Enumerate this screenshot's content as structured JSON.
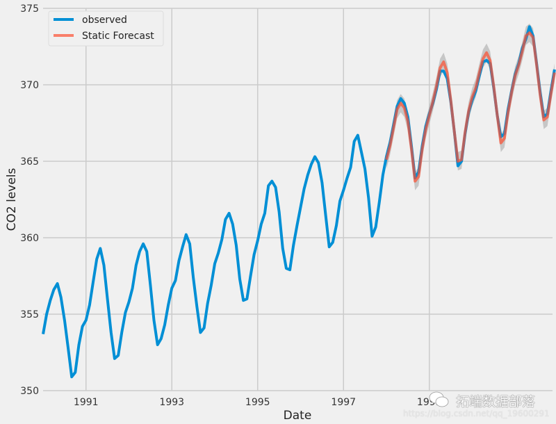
{
  "chart_data": {
    "type": "line",
    "title": "",
    "xlabel": "Date",
    "ylabel": "CO2 levels",
    "x_start": "1990-01",
    "x_end": "2001-12",
    "x_frequency": "monthly",
    "xlim": [
      "1990-01",
      "2001-12"
    ],
    "ylim": [
      350,
      375
    ],
    "x_ticks": [
      "1991",
      "1993",
      "1995",
      "1997",
      "1999"
    ],
    "y_ticks": [
      350,
      355,
      360,
      365,
      370,
      375
    ],
    "grid": true,
    "legend_position": "top-left",
    "series": [
      {
        "name": "observed",
        "color": "#008fd5",
        "start": "1990-01",
        "values": [
          353.7,
          355.0,
          355.9,
          356.6,
          357.0,
          356.1,
          354.6,
          352.8,
          350.9,
          351.2,
          353.0,
          354.2,
          354.6,
          355.6,
          357.1,
          358.6,
          359.3,
          358.2,
          356.0,
          353.8,
          352.1,
          352.3,
          353.8,
          355.1,
          355.8,
          356.7,
          358.2,
          359.1,
          359.6,
          359.1,
          356.9,
          354.6,
          353.0,
          353.4,
          354.3,
          355.6,
          356.7,
          357.2,
          358.5,
          359.4,
          360.2,
          359.6,
          357.4,
          355.5,
          353.8,
          354.1,
          355.7,
          356.9,
          358.3,
          359.0,
          359.9,
          361.2,
          361.6,
          360.9,
          359.5,
          357.3,
          355.9,
          356.0,
          357.5,
          358.9,
          359.8,
          360.9,
          361.6,
          363.4,
          363.7,
          363.3,
          361.7,
          359.3,
          358.0,
          357.9,
          359.5,
          360.8,
          362.0,
          363.2,
          364.1,
          364.8,
          365.3,
          364.9,
          363.6,
          361.5,
          359.4,
          359.7,
          360.8,
          362.4,
          363.1,
          363.9,
          364.6,
          366.3,
          366.7,
          365.6,
          364.5,
          362.6,
          360.1,
          360.7,
          362.3,
          364.1,
          365.3,
          366.2,
          367.4,
          368.6,
          369.1,
          368.8,
          367.9,
          366.0,
          363.9,
          364.3,
          366.0,
          367.3,
          368.1,
          368.8,
          369.7,
          370.9,
          370.9,
          370.4,
          368.9,
          366.9,
          364.7,
          365.0,
          366.8,
          368.2,
          369.0,
          369.6,
          370.6,
          371.5,
          371.6,
          371.4,
          369.8,
          368.0,
          366.6,
          366.8,
          368.4,
          369.6,
          370.7,
          371.4,
          372.4,
          373.0,
          373.8,
          373.2,
          371.4,
          369.5,
          367.9,
          368.1,
          369.6,
          371.0
        ]
      },
      {
        "name": "Static Forecast",
        "color": "#fc4f30",
        "start": "1998-01",
        "ci_halfwidth": 0.6,
        "ci_color": "#aaaaaa",
        "values": [
          365.1,
          366.0,
          367.2,
          368.4,
          368.8,
          368.5,
          367.6,
          365.8,
          363.7,
          364.0,
          365.8,
          367.1,
          368.0,
          368.9,
          369.9,
          371.1,
          371.5,
          370.8,
          369.0,
          366.9,
          365.0,
          365.1,
          366.9,
          368.3,
          369.2,
          369.8,
          370.8,
          371.7,
          372.1,
          371.6,
          369.9,
          368.0,
          366.2,
          366.5,
          368.2,
          369.5,
          370.6,
          371.3,
          372.2,
          373.2,
          373.4,
          373.1,
          371.3,
          369.3,
          367.7,
          367.9,
          369.4,
          370.8
        ]
      }
    ]
  },
  "colors": {
    "background": "#f0f0f0",
    "grid": "#cbcbcb"
  },
  "watermark": {
    "title": "拓端数据部落",
    "url": "https://blog.csdn.net/qq_19600291",
    "icon": "wechat-icon"
  }
}
